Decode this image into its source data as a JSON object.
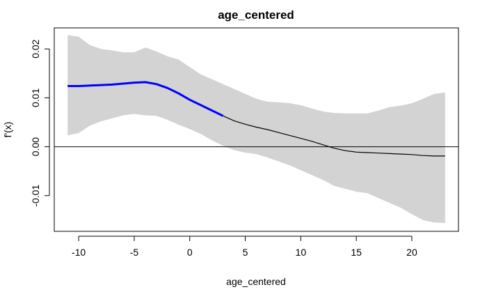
{
  "chart_data": {
    "type": "area",
    "title": "age_centered",
    "xlabel": "age_centered",
    "ylabel": "f'(x)",
    "xlim": [
      -12.2,
      24.2
    ],
    "ylim": [
      -0.0173,
      0.0243
    ],
    "xticks": [
      -10,
      -5,
      0,
      5,
      10,
      15,
      20
    ],
    "xtick_labels": [
      "-10",
      "-5",
      "0",
      "5",
      "10",
      "15",
      "20"
    ],
    "yticks": [
      -0.01,
      0.0,
      0.01,
      0.02
    ],
    "ytick_labels": [
      "-0.01",
      "0.00",
      "0.01",
      "0.02"
    ],
    "reference_line_y": 0,
    "grid": false,
    "colors": {
      "band": "#d3d3d3",
      "significant": "#0000ff",
      "estimate": "#000000"
    },
    "series": [
      {
        "role": "confidence_band",
        "x": [
          -11,
          -10,
          -9,
          -8,
          -7,
          -6,
          -5,
          -4,
          -3,
          -2,
          -1,
          0,
          1,
          2,
          3,
          4,
          5,
          6,
          7,
          8,
          9,
          10,
          11,
          12,
          13,
          14,
          15,
          16,
          17,
          18,
          19,
          20,
          21,
          22,
          23
        ],
        "upper": [
          0.0228,
          0.0225,
          0.0208,
          0.02,
          0.0197,
          0.0193,
          0.0193,
          0.0203,
          0.0195,
          0.0185,
          0.0178,
          0.0163,
          0.0148,
          0.0138,
          0.0128,
          0.0118,
          0.0108,
          0.0098,
          0.0092,
          0.0091,
          0.0089,
          0.0085,
          0.0078,
          0.0072,
          0.0069,
          0.0068,
          0.0068,
          0.0068,
          0.0074,
          0.0081,
          0.0084,
          0.0089,
          0.0098,
          0.0108,
          0.0111
        ],
        "lower": [
          0.0023,
          0.0028,
          0.0043,
          0.0052,
          0.0058,
          0.0064,
          0.0067,
          0.0064,
          0.0063,
          0.0055,
          0.0045,
          0.0036,
          0.0026,
          0.0013,
          0.0002,
          -0.0007,
          -0.0012,
          -0.0015,
          -0.0022,
          -0.003,
          -0.0038,
          -0.0048,
          -0.0058,
          -0.0068,
          -0.008,
          -0.0086,
          -0.0092,
          -0.0095,
          -0.0105,
          -0.0115,
          -0.0125,
          -0.0138,
          -0.015,
          -0.0155,
          -0.0156
        ]
      },
      {
        "role": "significant_estimate",
        "x": [
          -11,
          -10,
          -9,
          -8,
          -7,
          -6,
          -5,
          -4,
          -3,
          -2,
          -1,
          0,
          1,
          2,
          3
        ],
        "y": [
          0.0124,
          0.0124,
          0.0125,
          0.0126,
          0.0127,
          0.0129,
          0.0131,
          0.0132,
          0.0128,
          0.012,
          0.0109,
          0.0096,
          0.0085,
          0.0074,
          0.0063
        ]
      },
      {
        "role": "estimate",
        "x": [
          3,
          4,
          5,
          6,
          7,
          8,
          9,
          10,
          11,
          12,
          13,
          14,
          15,
          16,
          17,
          18,
          19,
          20,
          21,
          22,
          23
        ],
        "y": [
          0.0063,
          0.0053,
          0.0046,
          0.004,
          0.0035,
          0.0029,
          0.0023,
          0.0017,
          0.0011,
          0.0004,
          -0.0003,
          -0.0008,
          -0.0011,
          -0.0012,
          -0.0013,
          -0.0014,
          -0.0015,
          -0.0016,
          -0.0018,
          -0.0019,
          -0.0019
        ]
      }
    ]
  }
}
